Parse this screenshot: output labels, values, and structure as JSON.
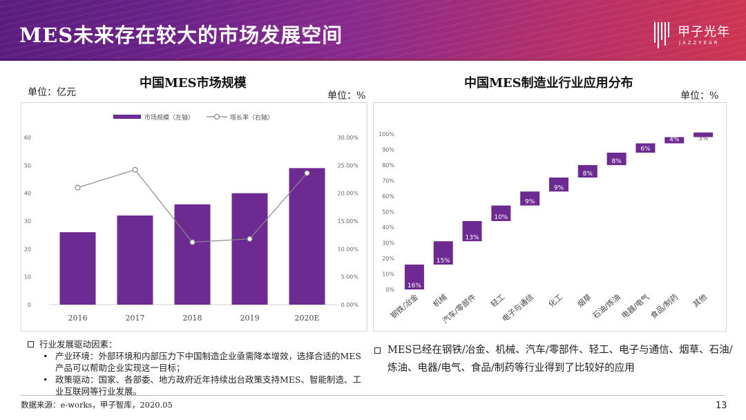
{
  "header": {
    "title": "MES未来存在较大的市场发展空间",
    "logo_name": "甲子光年",
    "logo_sub": "JAZZYEAR"
  },
  "left_chart": {
    "title": "中国MES市场规模",
    "unit_left": "单位：亿元",
    "unit_right": "单位：%"
  },
  "right_chart": {
    "title": "中国MES制造业行业应用分布",
    "unit": "单位：%"
  },
  "chart_data": [
    {
      "type": "bar",
      "title": "中国MES市场规模",
      "categories": [
        "2016",
        "2017",
        "2018",
        "2019",
        "2020E"
      ],
      "series": [
        {
          "name": "市场规模（左轴）",
          "type": "bar",
          "axis": "left",
          "values": [
            26,
            32,
            36,
            40,
            49
          ]
        },
        {
          "name": "增长率（右轴）",
          "type": "line",
          "axis": "right",
          "values": [
            21.0,
            24.2,
            11.2,
            11.8,
            23.6
          ]
        }
      ],
      "ylim_left": [
        0,
        60
      ],
      "ylim_right": [
        0,
        30
      ],
      "left_ticks": [
        "0",
        "10",
        "20",
        "30",
        "40",
        "50",
        "60"
      ],
      "right_ticks": [
        "0.00%",
        "5.00%",
        "10.00%",
        "15.00%",
        "20.00%",
        "25.00%",
        "30.00%"
      ],
      "legend": [
        "市场规模（左轴）",
        "增长率（右轴）"
      ],
      "bar_color": "#6e2a93",
      "line_color": "#888888"
    },
    {
      "type": "bar",
      "subtype": "waterfall",
      "title": "中国MES制造业行业应用分布",
      "categories": [
        "钢铁/冶金",
        "机械",
        "汽车/零部件",
        "轻工",
        "电子与通信",
        "化工",
        "烟草",
        "石油/炼油",
        "电器/电气",
        "食品/制药",
        "其他"
      ],
      "values": [
        16,
        15,
        13,
        10,
        9,
        9,
        8,
        8,
        6,
        4,
        3
      ],
      "labels": [
        "16%",
        "15%",
        "13%",
        "10%",
        "9%",
        "9%",
        "8%",
        "8%",
        "6%",
        "4%",
        "3%"
      ],
      "ylim": [
        0,
        100
      ],
      "y_ticks": [
        "0%",
        "10%",
        "20%",
        "30%",
        "40%",
        "50%",
        "60%",
        "70%",
        "80%",
        "90%",
        "100%"
      ],
      "bar_color": "#6e2a93"
    }
  ],
  "notes_left": {
    "heading": "行业发展驱动因素：",
    "bullets": [
      "产业环境：外部环境和内部压力下中国制造企业亟需降本增效，选择合适的MES产品可以帮助企业实现这一目标；",
      "政策驱动：国家、各部委、地方政府近年持续出台政策支持MES、智能制造、工业互联网等行业发展。"
    ]
  },
  "notes_right": {
    "text": "MES已经在钢铁/冶金、机械、汽车/零部件、轻工、电子与通信、烟草、石油/炼油、电器/电气、食品/制药等行业得到了比较好的应用"
  },
  "footer": {
    "source": "数据来源：e-works，甲子智库，2020.05",
    "page": "13"
  }
}
